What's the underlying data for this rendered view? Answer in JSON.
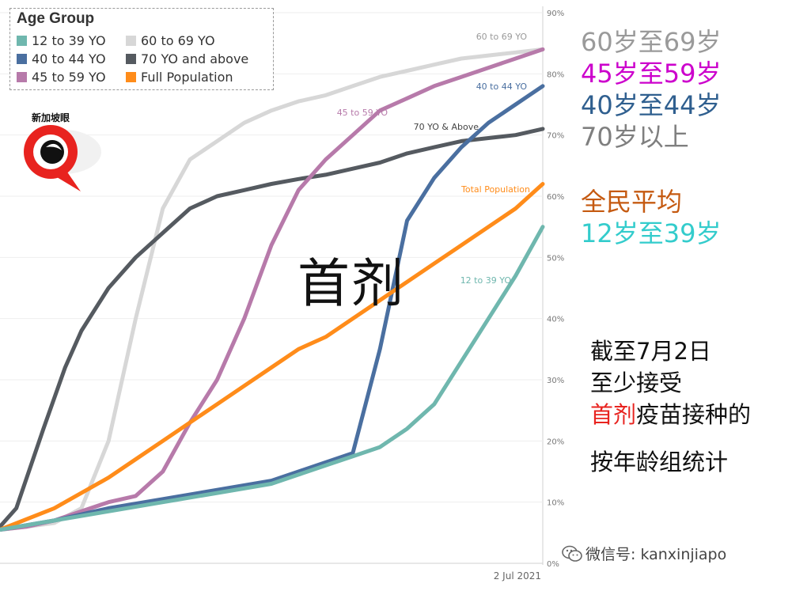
{
  "chart_data": {
    "type": "line",
    "ylim": [
      0,
      90
    ],
    "yticks": [
      0,
      10,
      20,
      30,
      40,
      50,
      60,
      70,
      80,
      90
    ],
    "ytick_labels": [
      "0%",
      "10%",
      "20%",
      "30%",
      "40%",
      "50%",
      "60%",
      "70%",
      "80%",
      "90%"
    ],
    "x_end_label": "2 Jul 2021",
    "legend_title": "Age Group",
    "legend": [
      {
        "label": "12 to 39 YO",
        "color": "#6fb7ae"
      },
      {
        "label": "60 to 69 YO",
        "color": "#d7d7d7"
      },
      {
        "label": "40 to 44 YO",
        "color": "#4a6fa0"
      },
      {
        "label": "70 YO and above",
        "color": "#555a60"
      },
      {
        "label": "45 to 59 YO",
        "color": "#b77aaa"
      },
      {
        "label": "Full Population",
        "color": "#ff8c1a"
      }
    ],
    "series": [
      {
        "name": "60 to 69 YO",
        "label": "60 to 69 YO",
        "color": "#d7d7d7",
        "points": [
          [
            0,
            5.5
          ],
          [
            5,
            6
          ],
          [
            10,
            6.6
          ],
          [
            15,
            9
          ],
          [
            20,
            20
          ],
          [
            25,
            40
          ],
          [
            30,
            58
          ],
          [
            35,
            66
          ],
          [
            40,
            69
          ],
          [
            45,
            72
          ],
          [
            50,
            74
          ],
          [
            55,
            75.5
          ],
          [
            60,
            76.5
          ],
          [
            65,
            78
          ],
          [
            70,
            79.5
          ],
          [
            75,
            80.5
          ],
          [
            80,
            81.5
          ],
          [
            85,
            82.5
          ],
          [
            90,
            83
          ],
          [
            95,
            83.5
          ],
          [
            100,
            84
          ]
        ]
      },
      {
        "name": "70 YO and above",
        "label": "70 YO & Above",
        "color": "#555a60",
        "points": [
          [
            0,
            6
          ],
          [
            3,
            9
          ],
          [
            8,
            22
          ],
          [
            12,
            32
          ],
          [
            15,
            38
          ],
          [
            20,
            45
          ],
          [
            25,
            50
          ],
          [
            30,
            54
          ],
          [
            35,
            58
          ],
          [
            40,
            60
          ],
          [
            45,
            61
          ],
          [
            50,
            62
          ],
          [
            55,
            62.8
          ],
          [
            60,
            63.5
          ],
          [
            65,
            64.5
          ],
          [
            70,
            65.5
          ],
          [
            75,
            67
          ],
          [
            80,
            68
          ],
          [
            85,
            69
          ],
          [
            90,
            69.5
          ],
          [
            95,
            70
          ],
          [
            100,
            71
          ]
        ]
      },
      {
        "name": "45 to 59 YO",
        "label": "45 to 59 YO",
        "color": "#b77aaa",
        "points": [
          [
            0,
            5.5
          ],
          [
            5,
            6
          ],
          [
            10,
            7
          ],
          [
            15,
            8.5
          ],
          [
            20,
            10
          ],
          [
            25,
            11
          ],
          [
            30,
            15
          ],
          [
            35,
            23
          ],
          [
            40,
            30
          ],
          [
            45,
            40
          ],
          [
            50,
            52
          ],
          [
            55,
            61
          ],
          [
            60,
            66
          ],
          [
            65,
            70
          ],
          [
            70,
            74
          ],
          [
            75,
            76
          ],
          [
            80,
            78
          ],
          [
            85,
            79.5
          ],
          [
            90,
            81
          ],
          [
            95,
            82.5
          ],
          [
            100,
            84
          ]
        ]
      },
      {
        "name": "40 to 44 YO",
        "label": "40 to 44 YO",
        "color": "#4a6fa0",
        "points": [
          [
            0,
            5.5
          ],
          [
            10,
            7
          ],
          [
            20,
            9
          ],
          [
            30,
            10.5
          ],
          [
            40,
            12
          ],
          [
            50,
            13.5
          ],
          [
            55,
            15
          ],
          [
            60,
            16.5
          ],
          [
            65,
            18
          ],
          [
            70,
            35
          ],
          [
            75,
            56
          ],
          [
            80,
            63
          ],
          [
            85,
            68
          ],
          [
            90,
            72
          ],
          [
            95,
            75
          ],
          [
            100,
            78
          ]
        ]
      },
      {
        "name": "Full Population",
        "label": "Total Population",
        "color": "#ff8c1a",
        "points": [
          [
            0,
            5.5
          ],
          [
            10,
            9
          ],
          [
            20,
            14
          ],
          [
            25,
            17
          ],
          [
            30,
            20
          ],
          [
            35,
            23
          ],
          [
            40,
            26
          ],
          [
            45,
            29
          ],
          [
            50,
            32
          ],
          [
            55,
            35
          ],
          [
            60,
            37
          ],
          [
            65,
            40
          ],
          [
            70,
            43
          ],
          [
            75,
            46
          ],
          [
            80,
            49
          ],
          [
            85,
            52
          ],
          [
            90,
            55
          ],
          [
            95,
            58
          ],
          [
            100,
            62
          ]
        ]
      },
      {
        "name": "12 to 39 YO",
        "label": "12 to 39 YO",
        "color": "#6fb7ae",
        "points": [
          [
            0,
            5.5
          ],
          [
            10,
            7
          ],
          [
            20,
            8.5
          ],
          [
            30,
            10
          ],
          [
            40,
            11.5
          ],
          [
            50,
            13
          ],
          [
            55,
            14.5
          ],
          [
            60,
            16
          ],
          [
            65,
            17.5
          ],
          [
            70,
            19
          ],
          [
            75,
            22
          ],
          [
            80,
            26
          ],
          [
            85,
            33
          ],
          [
            90,
            40
          ],
          [
            95,
            47
          ],
          [
            100,
            55
          ]
        ]
      }
    ],
    "grid": true
  },
  "logo_text": "新加坡眼",
  "main_label": "首剂",
  "side_labels": [
    {
      "text": "60岁至69岁",
      "color": "#9a9a9a"
    },
    {
      "text": "45岁至59岁",
      "color": "#cc00cc"
    },
    {
      "text": "40岁至44岁",
      "color": "#2f5f8f"
    },
    {
      "text": "70岁以上",
      "color": "#7f7f7f"
    },
    {
      "text": "全民平均",
      "color": "#c55a11"
    },
    {
      "text": "12岁至39岁",
      "color": "#33cccc"
    }
  ],
  "note": {
    "line1": "截至7月2日",
    "line2": "至少接受",
    "line3_red": "首剂",
    "line3_rest": "疫苗接种的",
    "line4": "按年龄组统计"
  },
  "wechat": "微信号: kanxinjiapo"
}
